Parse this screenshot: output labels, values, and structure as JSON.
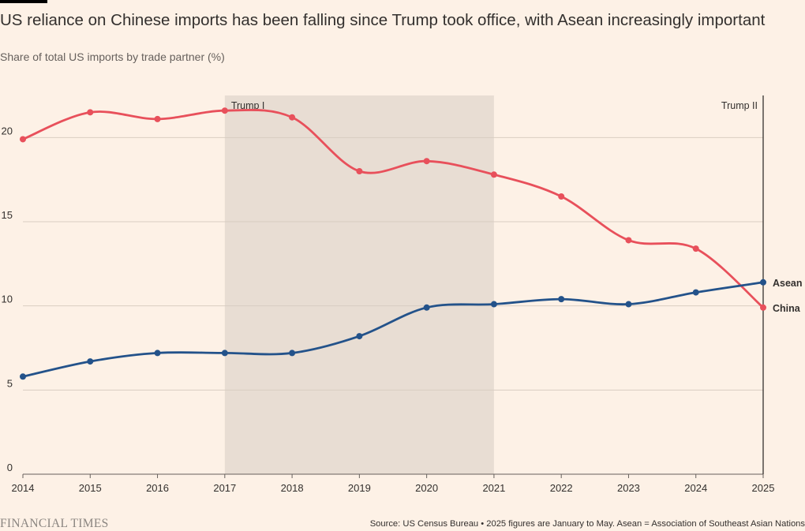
{
  "header": {
    "title": "US reliance on Chinese imports has been falling since Trump took office, with Asean increasingly important",
    "subtitle": "Share of total US imports by trade partner (%)"
  },
  "footer": {
    "logo": "FINANCIAL TIMES",
    "source": "Source: US Census Bureau • 2025 figures are January to May. Asean = Association of Southeast Asian Nations"
  },
  "colors": {
    "background": "#fdf1e6",
    "china": "#e8505b",
    "asean": "#23528a",
    "shade": "#e8ddd3",
    "grid": "#d9cdc2",
    "axis": "#66605c"
  },
  "chart_data": {
    "type": "line",
    "x": [
      2014,
      2015,
      2016,
      2017,
      2018,
      2019,
      2020,
      2021,
      2022,
      2023,
      2024,
      2025
    ],
    "xlabels": [
      "2014",
      "2015",
      "2016",
      "2017",
      "2018",
      "2019",
      "2020",
      "2021",
      "2022",
      "2023",
      "2024",
      "2025"
    ],
    "yticks": [
      0,
      5,
      10,
      15,
      20
    ],
    "ytick_labels": [
      "0",
      "5",
      "10",
      "15",
      "20"
    ],
    "ylim": [
      0,
      22.5
    ],
    "xlim": [
      2014,
      2025
    ],
    "grid": true,
    "series": [
      {
        "name": "China",
        "color": "#e8505b",
        "values": [
          19.9,
          21.5,
          21.1,
          21.6,
          21.2,
          18.0,
          18.6,
          17.8,
          16.5,
          13.9,
          13.4,
          9.9
        ]
      },
      {
        "name": "Asean",
        "color": "#23528a",
        "values": [
          5.8,
          6.7,
          7.2,
          7.2,
          7.2,
          8.2,
          9.9,
          10.1,
          10.4,
          10.1,
          10.8,
          11.4
        ]
      }
    ],
    "annotations": [
      {
        "label": "Trump I",
        "type": "shaded-band",
        "from": 2017,
        "to": 2021
      },
      {
        "label": "Trump II",
        "type": "vertical-line",
        "at": 2025
      }
    ]
  }
}
